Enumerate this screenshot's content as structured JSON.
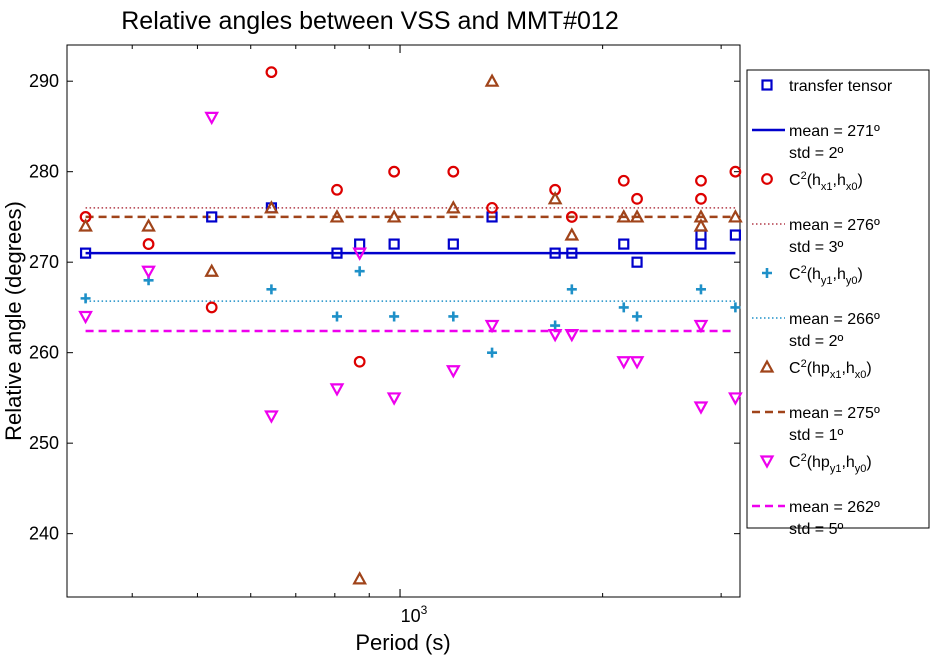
{
  "chart_data": {
    "type": "scatter",
    "title": "Relative angles between VSS and MMT#012",
    "xlabel": "Period (s)",
    "ylabel": "Relative angle (degrees)",
    "xscale": "log",
    "xlim": [
      320,
      3200
    ],
    "ylim": [
      233,
      294
    ],
    "yticks": [
      240,
      250,
      260,
      270,
      280,
      290
    ],
    "xtick_label": {
      "base": "10",
      "exp": "3"
    },
    "grid": false,
    "legend_position": "right, outside",
    "series": [
      {
        "name": "transfer tensor",
        "marker": "square",
        "color": "#0000CC",
        "points": [
          [
            341,
            271
          ],
          [
            525,
            275
          ],
          [
            644,
            276
          ],
          [
            806,
            271
          ],
          [
            871,
            272
          ],
          [
            980,
            272
          ],
          [
            1200,
            272
          ],
          [
            1370,
            275
          ],
          [
            1700,
            271
          ],
          [
            1800,
            271
          ],
          [
            2150,
            272
          ],
          [
            2250,
            270
          ],
          [
            2800,
            272
          ],
          [
            2800,
            273
          ],
          [
            3150,
            273
          ]
        ]
      },
      {
        "name": "transfer tensor mean",
        "line": "solid",
        "color": "#0000CC",
        "mean": 271,
        "std": 2,
        "legend_label": [
          "mean = 271º",
          "std =  2º"
        ]
      },
      {
        "name_parts": [
          "C",
          "2",
          "(h",
          "x1",
          ",h",
          "x0",
          ")"
        ],
        "marker": "circle",
        "color": "#DD0000",
        "points": [
          [
            341,
            275
          ],
          [
            423,
            272
          ],
          [
            525,
            265
          ],
          [
            644,
            291
          ],
          [
            806,
            278
          ],
          [
            871,
            259
          ],
          [
            980,
            280
          ],
          [
            1200,
            280
          ],
          [
            1370,
            276
          ],
          [
            1700,
            278
          ],
          [
            1800,
            275
          ],
          [
            2150,
            279
          ],
          [
            2250,
            277
          ],
          [
            2800,
            277
          ],
          [
            2800,
            279
          ],
          [
            3150,
            280
          ]
        ]
      },
      {
        "name": "C2(hx1,hx0) mean",
        "line": "dotted",
        "color": "#B23A48",
        "mean": 276,
        "std": 3,
        "legend_label": [
          "mean = 276º",
          "std =  3º"
        ]
      },
      {
        "name_parts": [
          "C",
          "2",
          "(h",
          "y1",
          ",h",
          "y0",
          ")"
        ],
        "marker": "plus",
        "color": "#1E90C8",
        "points": [
          [
            341,
            266
          ],
          [
            423,
            268
          ],
          [
            644,
            267
          ],
          [
            806,
            264
          ],
          [
            871,
            269
          ],
          [
            980,
            264
          ],
          [
            1200,
            264
          ],
          [
            1370,
            260
          ],
          [
            1700,
            263
          ],
          [
            1800,
            267
          ],
          [
            2150,
            265
          ],
          [
            2250,
            264
          ],
          [
            2800,
            267
          ],
          [
            3150,
            265
          ]
        ]
      },
      {
        "name": "C2(hy1,hy0) mean",
        "line": "dotted",
        "color": "#1E90C8",
        "mean": 265.7,
        "std": 2,
        "legend_label": [
          "mean = 266º",
          "std =  2º"
        ]
      },
      {
        "name_parts": [
          "C",
          "2",
          "(hp",
          "x1",
          ",h",
          "x0",
          ")"
        ],
        "marker": "triangle-up",
        "color": "#A0441A",
        "points": [
          [
            341,
            274
          ],
          [
            423,
            274
          ],
          [
            525,
            269
          ],
          [
            644,
            276
          ],
          [
            806,
            275
          ],
          [
            871,
            235
          ],
          [
            980,
            275
          ],
          [
            1200,
            276
          ],
          [
            1370,
            290
          ],
          [
            1700,
            277
          ],
          [
            1800,
            273
          ],
          [
            2150,
            275
          ],
          [
            2250,
            275
          ],
          [
            2800,
            274
          ],
          [
            2800,
            275
          ],
          [
            3150,
            275
          ]
        ]
      },
      {
        "name": "C2(hpx1,hx0) mean",
        "line": "dashed",
        "color": "#A0441A",
        "mean": 275,
        "std": 1,
        "legend_label": [
          "mean = 275º",
          "std =  1º"
        ]
      },
      {
        "name_parts": [
          "C",
          "2",
          "(hp",
          "y1",
          ",h",
          "y0",
          ")"
        ],
        "marker": "triangle-down",
        "color": "#EE00EE",
        "points": [
          [
            341,
            264
          ],
          [
            423,
            269
          ],
          [
            525,
            286
          ],
          [
            644,
            253
          ],
          [
            806,
            256
          ],
          [
            871,
            271
          ],
          [
            980,
            255
          ],
          [
            1200,
            258
          ],
          [
            1370,
            263
          ],
          [
            1700,
            262
          ],
          [
            1800,
            262
          ],
          [
            2150,
            259
          ],
          [
            2250,
            259
          ],
          [
            2800,
            254
          ],
          [
            2800,
            263
          ],
          [
            3150,
            255
          ]
        ]
      },
      {
        "name": "C2(hpy1,hy0) mean",
        "line": "dashed",
        "color": "#EE00EE",
        "mean": 262.4,
        "std": 5,
        "legend_label": [
          "mean = 262º",
          "std =  5º"
        ]
      }
    ]
  }
}
